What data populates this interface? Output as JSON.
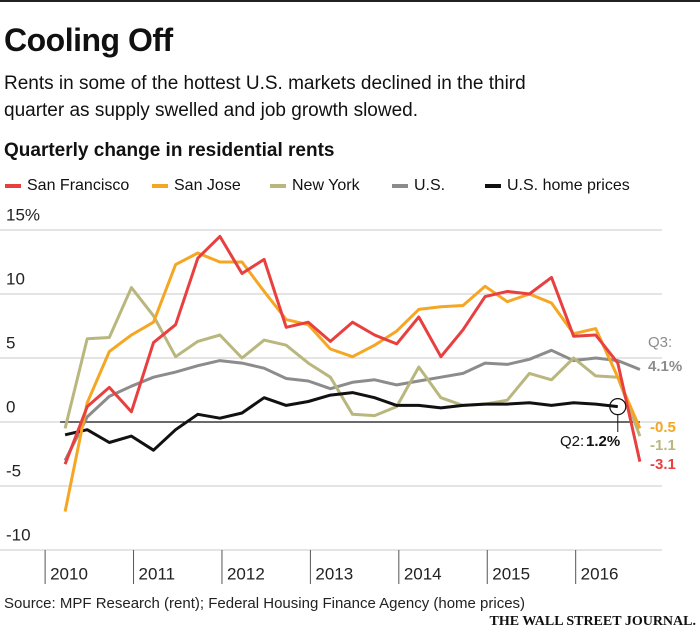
{
  "chart_data": {
    "type": "line",
    "title": "Cooling Off",
    "subtitle": "Rents in some of the hottest U.S. markets declined in the third quarter as supply swelled and job growth slowed.",
    "chart_title": "Quarterly change in residential rents",
    "source": "Source: MPF Research (rent); Federal Housing Finance Agency (home prices)",
    "credit": "THE WALL STREET JOURNAL.",
    "annotations": [
      "Q3:",
      "Q2:"
    ],
    "x": [
      2010,
      2010.25,
      2010.5,
      2010.75,
      2011,
      2011.25,
      2011.5,
      2011.75,
      2012,
      2012.25,
      2012.5,
      2012.75,
      2013,
      2013.25,
      2013.5,
      2013.75,
      2014,
      2014.25,
      2014.5,
      2014.75,
      2015,
      2015.25,
      2015.5,
      2015.75,
      2016,
      2016.25,
      2016.5
    ],
    "xlim": [
      2009.75,
      2016.75
    ],
    "xticks": [
      2010,
      2011,
      2012,
      2013,
      2014,
      2015,
      2016
    ],
    "ylim": [
      -10,
      15
    ],
    "yticks": [
      {
        "value": 15,
        "label": "15%"
      },
      10,
      5,
      0,
      -5,
      -10
    ],
    "grid": true,
    "series": [
      {
        "name": "San Francisco",
        "color": "#e8403f",
        "values": [
          -3.3,
          1.2,
          2.7,
          0.8,
          6.2,
          7.6,
          12.8,
          14.5,
          11.6,
          12.7,
          7.4,
          7.8,
          6.3,
          7.8,
          6.8,
          6.1,
          8.2,
          5.1,
          7.2,
          9.8,
          10.2,
          10,
          11.3,
          6.7,
          6.8,
          4.6,
          -3.1
        ]
      },
      {
        "name": "San Jose",
        "color": "#f5a623",
        "values": [
          -7,
          1.5,
          5.5,
          6.8,
          7.8,
          12.3,
          13.2,
          12.5,
          12.5,
          10.2,
          8,
          7.6,
          5.7,
          5.1,
          6,
          7.1,
          8.8,
          9,
          9.1,
          10.6,
          9.4,
          10,
          9.3,
          6.9,
          7.3,
          3.5,
          -0.5
        ]
      },
      {
        "name": "New York",
        "color": "#b9b77e",
        "values": [
          -0.5,
          6.5,
          6.6,
          10.5,
          8.3,
          5.1,
          6.3,
          6.8,
          5,
          6.4,
          6,
          4.6,
          3.5,
          0.6,
          0.5,
          1.2,
          4.3,
          1.9,
          1.3,
          1.4,
          1.7,
          3.8,
          3.3,
          5,
          3.6,
          3.5,
          -1.1
        ]
      },
      {
        "name": "U.S.",
        "color": "#8c8c8c",
        "values": [
          -3,
          0.4,
          2,
          2.8,
          3.5,
          3.9,
          4.4,
          4.8,
          4.6,
          4.2,
          3.4,
          3.2,
          2.6,
          3.1,
          3.3,
          2.9,
          3.2,
          3.5,
          3.8,
          4.6,
          4.5,
          4.9,
          5.6,
          4.8,
          5,
          4.8,
          4.1
        ],
        "value_labels": [
          null,
          null,
          null,
          null,
          null,
          null,
          null,
          null,
          null,
          null,
          null,
          null,
          null,
          null,
          null,
          null,
          null,
          null,
          null,
          null,
          null,
          null,
          null,
          null,
          null,
          null,
          "4.1%"
        ]
      },
      {
        "name": "U.S. home prices",
        "color": "#111111",
        "values": [
          -1,
          -0.6,
          -1.6,
          -1.1,
          -2.2,
          -0.6,
          0.6,
          0.3,
          0.7,
          1.9,
          1.3,
          1.6,
          2.1,
          2.3,
          1.9,
          1.3,
          1.3,
          1.1,
          1.3,
          1.4,
          1.4,
          1.5,
          1.3,
          1.5,
          1.4,
          1.2,
          null
        ],
        "value_labels": [
          null,
          null,
          null,
          null,
          null,
          null,
          null,
          null,
          null,
          null,
          null,
          null,
          null,
          null,
          null,
          null,
          null,
          null,
          null,
          null,
          null,
          null,
          null,
          null,
          null,
          "1.2%",
          null
        ]
      }
    ]
  }
}
